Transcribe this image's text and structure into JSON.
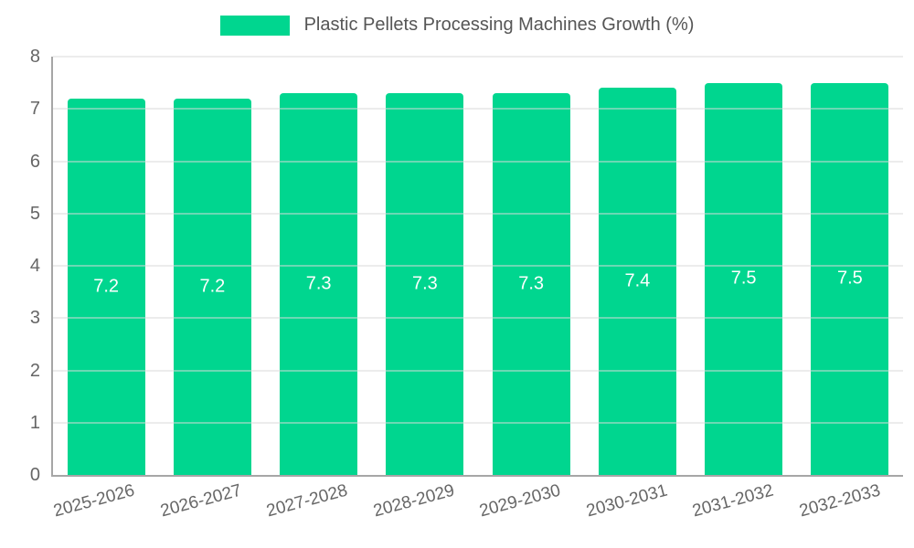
{
  "chart_data": {
    "type": "bar",
    "title": "Plastic Pellets Processing Machines Growth (%)",
    "categories": [
      "2025-2026",
      "2026-2027",
      "2027-2028",
      "2028-2029",
      "2029-2030",
      "2030-2031",
      "2031-2032",
      "2032-2033"
    ],
    "values": [
      7.2,
      7.2,
      7.3,
      7.3,
      7.3,
      7.4,
      7.5,
      7.5
    ],
    "xlabel": "",
    "ylabel": "",
    "ylim": [
      0,
      8
    ],
    "ytick_step": 1,
    "grid": true,
    "legend_position": "top",
    "bar_color": "#00d68f",
    "label_color": "#ffffff",
    "axis_text_color": "#666666"
  }
}
